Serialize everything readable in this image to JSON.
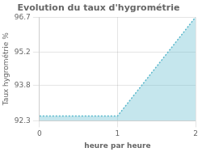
{
  "chart_data": {
    "type": "area",
    "title": "Evolution du taux d'hygrométrie",
    "x_label": "heure par heure",
    "y_label": "Taux hygrométrie %",
    "x": [
      0,
      1,
      2
    ],
    "values": [
      92.5,
      92.5,
      96.7
    ],
    "color": "#5ab8cc",
    "line_style": "dotted",
    "xlim": [
      0,
      2
    ],
    "xticks": [
      0,
      1,
      2
    ],
    "ylim": [
      92.3,
      96.7
    ],
    "yticks": [
      92.3,
      93.8,
      95.2,
      96.7
    ],
    "grid": true
  }
}
